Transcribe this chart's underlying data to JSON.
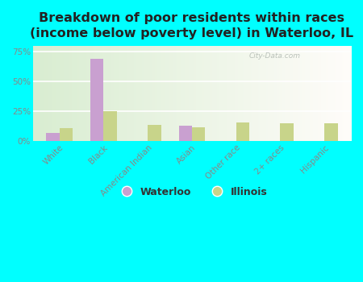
{
  "title": "Breakdown of poor residents within races\n(income below poverty level) in Waterloo, IL",
  "categories": [
    "White",
    "Black",
    "American Indian",
    "Asian",
    "Other race",
    "2+ races",
    "Hispanic"
  ],
  "waterloo_values": [
    7,
    69,
    0,
    13,
    0,
    0,
    0
  ],
  "illinois_values": [
    11,
    25,
    14,
    12,
    16,
    15,
    15
  ],
  "waterloo_color": "#c9a0d0",
  "illinois_color": "#c8d48a",
  "bg_grad_topleft": "#c8e8c0",
  "bg_grad_topright": "#e8f4e8",
  "bg_grad_bottom": "#f0f8f0",
  "outer_bg": "#00ffff",
  "ylim": [
    0,
    80
  ],
  "yticks": [
    0,
    25,
    50,
    75
  ],
  "ytick_labels": [
    "0%",
    "25%",
    "50%",
    "75%"
  ],
  "bar_width": 0.3,
  "title_fontsize": 11.5,
  "tick_fontsize": 7.5,
  "legend_fontsize": 9,
  "waterloo_label": "Waterloo",
  "illinois_label": "Illinois",
  "watermark": "City-Data.com"
}
